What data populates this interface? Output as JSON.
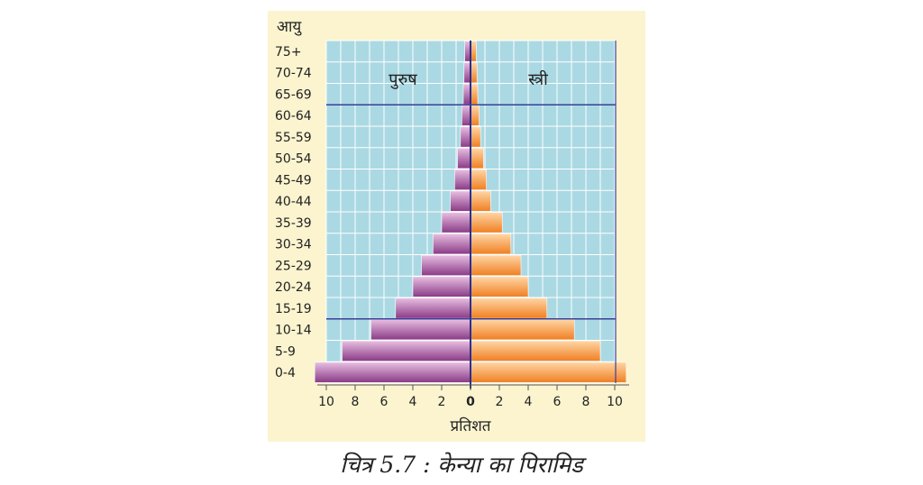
{
  "caption": "चित्र 5.7 : केन्या का पिरामिड",
  "chart_data": {
    "type": "bar",
    "orientation": "horizontal-population-pyramid",
    "age_axis_label": "आयु",
    "xlabel": "प्रतिशत",
    "categories": [
      "0-4",
      "5-9",
      "10-14",
      "15-19",
      "20-24",
      "25-29",
      "30-34",
      "35-39",
      "40-44",
      "45-49",
      "50-54",
      "55-59",
      "60-64",
      "65-69",
      "70-74",
      "75+"
    ],
    "series": [
      {
        "name": "पुरुष",
        "side": "left",
        "color_dark": "#8a3a86",
        "color_light": "#e8bfe2",
        "values": [
          10.8,
          8.9,
          6.9,
          5.2,
          4.0,
          3.4,
          2.6,
          2.0,
          1.4,
          1.1,
          0.9,
          0.7,
          0.6,
          0.5,
          0.45,
          0.4
        ]
      },
      {
        "name": "स्त्री",
        "side": "right",
        "color_dark": "#f07f22",
        "color_light": "#ffd6a6",
        "values": [
          10.8,
          9.0,
          7.2,
          5.3,
          4.0,
          3.5,
          2.8,
          2.2,
          1.4,
          1.1,
          0.9,
          0.7,
          0.6,
          0.5,
          0.45,
          0.4
        ]
      }
    ],
    "xlim": [
      -10,
      10
    ],
    "xticks": [
      10,
      8,
      6,
      4,
      2,
      0,
      2,
      4,
      6,
      8,
      10
    ],
    "horizontal_lines_after_groups": [
      "10-14",
      "60-64"
    ],
    "plot_background": "#aad9e3",
    "grid": true
  }
}
